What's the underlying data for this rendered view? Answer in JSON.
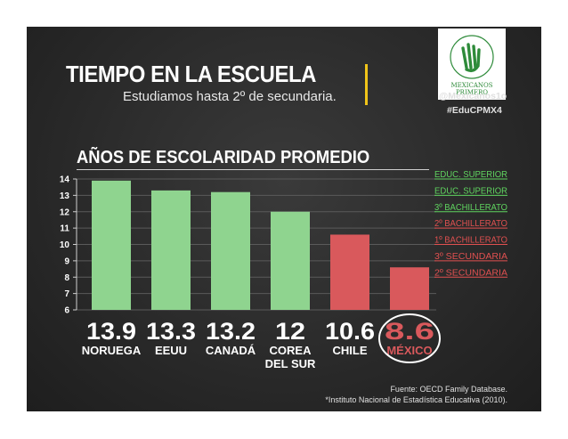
{
  "header": {
    "title": "TIEMPO EN LA ESCUELA",
    "subtitle": "Estudiamos hasta 2º de secundaria.",
    "handle": "@Mexicanos1o",
    "hashtag": "#EduCPMX4",
    "logo_text": "MEXICANOS PRIMERO"
  },
  "colors": {
    "green": "#8fd48f",
    "red": "#d9595c",
    "level_green": "#5fd35f",
    "level_red": "#e05050"
  },
  "chart_data": {
    "type": "bar",
    "title": "AÑOS DE ESCOLARIDAD PROMEDIO",
    "categories": [
      "NORUEGA",
      "EEUU",
      "CANADÁ",
      "COREA DEL SUR",
      "CHILE",
      "MÉXICO"
    ],
    "category_lines": [
      [
        "NORUEGA"
      ],
      [
        "EEUU"
      ],
      [
        "CANADÁ"
      ],
      [
        "COREA",
        "DEL SUR"
      ],
      [
        "CHILE"
      ],
      [
        "MÉXICO"
      ]
    ],
    "values": [
      13.9,
      13.3,
      13.2,
      12,
      10.6,
      8.6
    ],
    "value_labels": [
      "13.9",
      "13.3",
      "13.2",
      "12",
      "10.6",
      "8.6"
    ],
    "bar_colors": [
      "green",
      "green",
      "green",
      "green",
      "red",
      "red"
    ],
    "highlight": "MÉXICO",
    "ylim": [
      6,
      14
    ],
    "yticks": [
      6,
      7,
      8,
      9,
      10,
      11,
      12,
      13,
      14
    ],
    "reference_levels": [
      {
        "label": "EDUC. SUPERIOR",
        "value": 14,
        "color": "level_green"
      },
      {
        "label": "EDUC. SUPERIOR",
        "value": 13,
        "color": "level_green"
      },
      {
        "label": "3º BACHILLERATO",
        "value": 12,
        "color": "level_green"
      },
      {
        "label": "2º BACHILLERATO",
        "value": 11,
        "color": "level_red"
      },
      {
        "label": "1º BACHILLERATO",
        "value": 10,
        "color": "level_red"
      },
      {
        "label": "3º SECUNDARIA",
        "value": 9,
        "color": "level_red"
      },
      {
        "label": "2º SECUNDARIA",
        "value": 8,
        "color": "level_red"
      }
    ]
  },
  "footer": {
    "source1": "Fuente: OECD Family Database.",
    "source2": "*Instituto Nacional de Estadística Educativa (2010)."
  }
}
